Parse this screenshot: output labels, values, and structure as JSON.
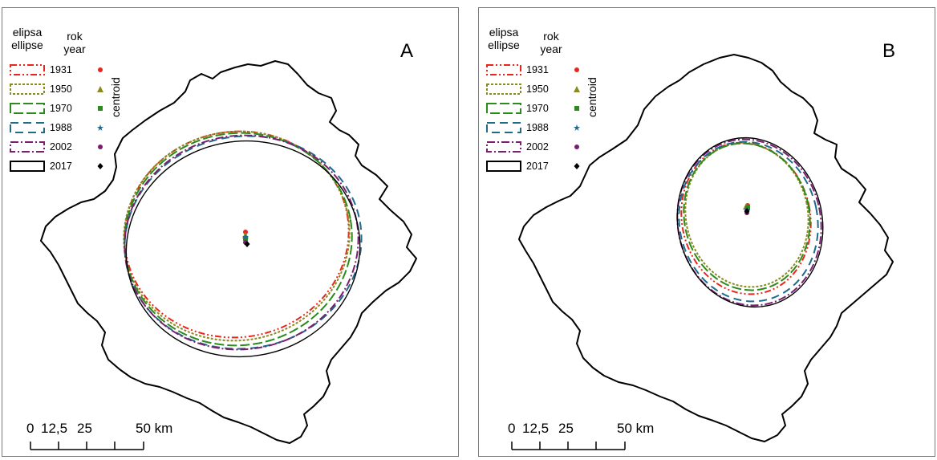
{
  "panels": [
    {
      "letter": "A",
      "legend": {
        "header_ellipse_cz": "elipsa",
        "header_ellipse_en": "ellipse",
        "header_year_cz": "rok",
        "header_year_en": "year",
        "centroid_label": "centroid",
        "entries": [
          {
            "year": "1931",
            "color": "#e8261c",
            "dash": "8 3 2 3 2 3",
            "marker": "circle"
          },
          {
            "year": "1950",
            "color": "#8a8a1e",
            "dash": "3 2",
            "marker": "triangle"
          },
          {
            "year": "1970",
            "color": "#2d8a1e",
            "dash": "12 4",
            "marker": "square"
          },
          {
            "year": "1988",
            "color": "#1e6b8c",
            "dash": "10 6",
            "marker": "star"
          },
          {
            "year": "2002",
            "color": "#7a1e6e",
            "dash": "10 3 2 3",
            "marker": "circle"
          },
          {
            "year": "2017",
            "color": "#000000",
            "dash": "",
            "marker": "diamond"
          }
        ]
      },
      "scale": {
        "labels": [
          "0",
          "12,5",
          "25",
          "50 km"
        ]
      }
    },
    {
      "letter": "B",
      "legend": {
        "header_ellipse_cz": "elipsa",
        "header_ellipse_en": "ellipse",
        "header_year_cz": "rok",
        "header_year_en": "year",
        "centroid_label": "centroid",
        "entries": [
          {
            "year": "1931",
            "color": "#e8261c",
            "dash": "8 3 2 3 2 3",
            "marker": "circle"
          },
          {
            "year": "1950",
            "color": "#8a8a1e",
            "dash": "3 2",
            "marker": "triangle"
          },
          {
            "year": "1970",
            "color": "#2d8a1e",
            "dash": "12 4",
            "marker": "square"
          },
          {
            "year": "1988",
            "color": "#1e6b8c",
            "dash": "10 6",
            "marker": "star"
          },
          {
            "year": "2002",
            "color": "#7a1e6e",
            "dash": "10 3 2 3",
            "marker": "circle"
          },
          {
            "year": "2017",
            "color": "#000000",
            "dash": "",
            "marker": "diamond"
          }
        ]
      },
      "scale": {
        "labels": [
          "0",
          "12,5",
          "25",
          "50 km"
        ]
      }
    }
  ]
}
